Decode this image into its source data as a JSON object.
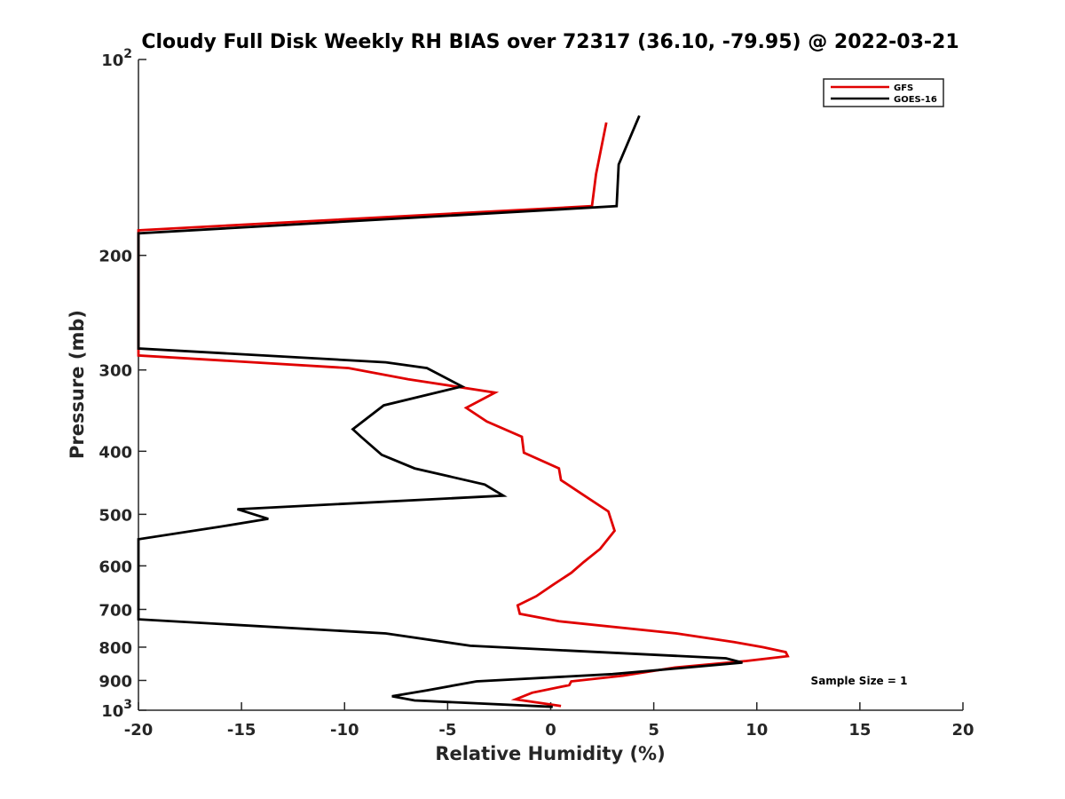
{
  "chart_data": {
    "type": "line",
    "title": "Cloudy Full Disk Weekly RH BIAS over 72317 (36.10, -79.95) @ 2022-03-21",
    "xlabel": "Relative Humidity (%)",
    "ylabel": "Pressure (mb)",
    "xlim": [
      -20,
      20
    ],
    "ylim": [
      1000,
      100
    ],
    "y_scale": "log",
    "y_direction": "reversed",
    "grid": false,
    "legend_position": "top-right",
    "x_ticks": [
      -20,
      -15,
      -10,
      -5,
      0,
      5,
      10,
      15,
      20
    ],
    "x_tick_labels": [
      "-20",
      "-15",
      "-10",
      "-5",
      "0",
      "5",
      "10",
      "15",
      "20"
    ],
    "y_ticks": [
      {
        "value": 100,
        "base": "10",
        "exp": "2"
      },
      {
        "value": 200,
        "label": "200"
      },
      {
        "value": 300,
        "label": "300"
      },
      {
        "value": 400,
        "label": "400"
      },
      {
        "value": 500,
        "label": "500"
      },
      {
        "value": 600,
        "label": "600"
      },
      {
        "value": 700,
        "label": "700"
      },
      {
        "value": 800,
        "label": "800"
      },
      {
        "value": 900,
        "label": "900"
      },
      {
        "value": 1000,
        "base": "10",
        "exp": "3"
      }
    ],
    "annotation": "Sample Size = 1",
    "series": [
      {
        "name": "GFS",
        "color": "#e00000",
        "points": [
          {
            "x": 2.7,
            "y": 125
          },
          {
            "x": 2.2,
            "y": 150
          },
          {
            "x": 2.0,
            "y": 168
          },
          {
            "x": -20.0,
            "y": 183
          },
          {
            "x": -20.0,
            "y": 285
          },
          {
            "x": -9.8,
            "y": 298
          },
          {
            "x": -6.9,
            "y": 310
          },
          {
            "x": -2.7,
            "y": 325
          },
          {
            "x": -4.1,
            "y": 343
          },
          {
            "x": -3.1,
            "y": 360
          },
          {
            "x": -1.4,
            "y": 380
          },
          {
            "x": -1.3,
            "y": 402
          },
          {
            "x": 0.4,
            "y": 425
          },
          {
            "x": 0.5,
            "y": 443
          },
          {
            "x": 1.5,
            "y": 465
          },
          {
            "x": 2.8,
            "y": 495
          },
          {
            "x": 3.1,
            "y": 530
          },
          {
            "x": 2.4,
            "y": 565
          },
          {
            "x": 1.6,
            "y": 592
          },
          {
            "x": 1.0,
            "y": 615
          },
          {
            "x": 0.1,
            "y": 642
          },
          {
            "x": -0.7,
            "y": 668
          },
          {
            "x": -1.6,
            "y": 690
          },
          {
            "x": -1.5,
            "y": 711
          },
          {
            "x": 0.4,
            "y": 730
          },
          {
            "x": 6.1,
            "y": 762
          },
          {
            "x": 8.9,
            "y": 786
          },
          {
            "x": 10.3,
            "y": 800
          },
          {
            "x": 11.4,
            "y": 814
          },
          {
            "x": 11.5,
            "y": 826
          },
          {
            "x": 9.5,
            "y": 840
          },
          {
            "x": 6.0,
            "y": 860
          },
          {
            "x": 3.5,
            "y": 885
          },
          {
            "x": 1.0,
            "y": 903
          },
          {
            "x": 0.9,
            "y": 915
          },
          {
            "x": -0.9,
            "y": 940
          },
          {
            "x": -1.7,
            "y": 962
          },
          {
            "x": 0.5,
            "y": 985
          }
        ]
      },
      {
        "name": "GOES-16",
        "color": "#000000",
        "points": [
          {
            "x": 4.3,
            "y": 122
          },
          {
            "x": 3.3,
            "y": 145
          },
          {
            "x": 3.2,
            "y": 168
          },
          {
            "x": -20.0,
            "y": 185
          },
          {
            "x": -20.0,
            "y": 278
          },
          {
            "x": -8.0,
            "y": 292
          },
          {
            "x": -6.0,
            "y": 298
          },
          {
            "x": -4.3,
            "y": 318
          },
          {
            "x": -8.1,
            "y": 340
          },
          {
            "x": -9.6,
            "y": 370
          },
          {
            "x": -9.2,
            "y": 380
          },
          {
            "x": -8.2,
            "y": 405
          },
          {
            "x": -6.6,
            "y": 425
          },
          {
            "x": -3.2,
            "y": 450
          },
          {
            "x": -2.3,
            "y": 468
          },
          {
            "x": -15.2,
            "y": 491
          },
          {
            "x": -13.7,
            "y": 508
          },
          {
            "x": -16.0,
            "y": 522
          },
          {
            "x": -20.0,
            "y": 546
          },
          {
            "x": -20.0,
            "y": 725
          },
          {
            "x": -8.0,
            "y": 762
          },
          {
            "x": -3.9,
            "y": 796
          },
          {
            "x": 8.5,
            "y": 832
          },
          {
            "x": 9.3,
            "y": 845
          },
          {
            "x": 3.0,
            "y": 880
          },
          {
            "x": -3.6,
            "y": 903
          },
          {
            "x": -6.0,
            "y": 932
          },
          {
            "x": -7.7,
            "y": 952
          },
          {
            "x": -6.6,
            "y": 966
          },
          {
            "x": 0.1,
            "y": 988
          }
        ]
      }
    ]
  }
}
